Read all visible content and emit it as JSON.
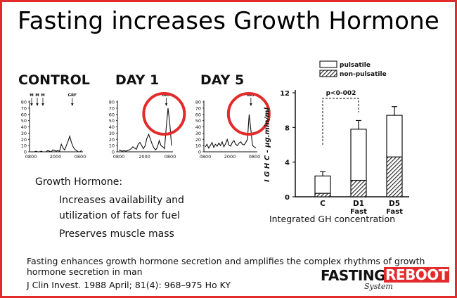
{
  "title": "Fasting increases Growth Hormone",
  "colors": {
    "border": "#e32b2b",
    "circle": "#e32b2b",
    "ink": "#111111"
  },
  "panels": [
    {
      "label": "CONTROL",
      "markers": [
        "M",
        "M",
        "M",
        "GRF"
      ],
      "yticks": [
        "80",
        "70",
        "60",
        "50",
        "40",
        "30",
        "20",
        "10",
        "0"
      ],
      "xticks": [
        "0800",
        "2000",
        "0800"
      ],
      "highlighted": false
    },
    {
      "label": "DAY 1",
      "markers": [
        "GRF"
      ],
      "yticks": [
        "80",
        "70",
        "60",
        "50",
        "40",
        "30",
        "20",
        "10",
        "0"
      ],
      "xticks": [
        "0800",
        "2000",
        "0800"
      ],
      "highlighted": true
    },
    {
      "label": "DAY 5",
      "markers": [
        "GRF"
      ],
      "yticks": [
        "80",
        "70",
        "60",
        "50",
        "40",
        "30",
        "20",
        "10",
        "0"
      ],
      "xticks": [
        "0800",
        "2000",
        "0800"
      ],
      "highlighted": true
    }
  ],
  "chart_data": [
    {
      "type": "line",
      "title": "CONTROL",
      "xlabel": "",
      "ylabel": "",
      "ylim": [
        0,
        80
      ],
      "xticks": [
        "0800",
        "2000",
        "0800"
      ],
      "series": [
        {
          "values": [
            0,
            0,
            0,
            1,
            0,
            0,
            1,
            0,
            0,
            0,
            2,
            1,
            0,
            3,
            2,
            1,
            2,
            1,
            12,
            6,
            3,
            10,
            17,
            25,
            15,
            8,
            4,
            2,
            0,
            0,
            2
          ]
        }
      ]
    },
    {
      "type": "line",
      "title": "DAY 1",
      "xlabel": "",
      "ylabel": "",
      "ylim": [
        0,
        80
      ],
      "xticks": [
        "0800",
        "2000",
        "0800"
      ],
      "series": [
        {
          "values": [
            3,
            2,
            1,
            2,
            1,
            2,
            3,
            5,
            8,
            6,
            4,
            12,
            15,
            10,
            5,
            10,
            22,
            28,
            20,
            12,
            6,
            3,
            8,
            18,
            10,
            8,
            5,
            40,
            70,
            45,
            10
          ]
        }
      ]
    },
    {
      "type": "line",
      "title": "DAY 5",
      "xlabel": "",
      "ylabel": "",
      "ylim": [
        0,
        80
      ],
      "xticks": [
        "0800",
        "2000",
        "0800"
      ],
      "series": [
        {
          "values": [
            8,
            12,
            6,
            10,
            15,
            7,
            12,
            9,
            14,
            10,
            16,
            8,
            13,
            20,
            11,
            9,
            15,
            18,
            12,
            10,
            14,
            16,
            12,
            11,
            15,
            20,
            60,
            35,
            10,
            8,
            6
          ]
        }
      ]
    },
    {
      "type": "bar",
      "title": "",
      "ylabel": "I G H C - μg.min/ml",
      "ylim": [
        0,
        12
      ],
      "yticks": [
        "0",
        "4",
        "8",
        "12"
      ],
      "categories": [
        "C",
        "D1 Fast",
        "D5 Fast"
      ],
      "series": [
        {
          "name": "pulsatile",
          "values": [
            2.0,
            5.9,
            4.8
          ]
        },
        {
          "name": "non-pulsatile",
          "values": [
            0.4,
            1.9,
            4.6
          ]
        }
      ],
      "totals": [
        2.4,
        7.8,
        9.4
      ],
      "errors": [
        0.5,
        1.0,
        1.0
      ],
      "annotation": "p<0-002",
      "legend": "top"
    }
  ],
  "text": {
    "gh_heading": "Growth Hormone:",
    "gh_bullet1a": "Increases availability and",
    "gh_bullet1b": "utilization of fats for fuel",
    "gh_bullet2": "Preserves muscle mass",
    "integrated": "Integrated GH concentration",
    "citation1": "Fasting enhances growth hormone secretion and amplifies the complex rhythms of growth",
    "citation2": "hormone secretion in man",
    "citation3": "J Clin Invest. 1988 April; 81(4): 968–975 Ho KY"
  },
  "logo": {
    "word1": "FASTING",
    "word2": "REBOOT",
    "word3": "System"
  }
}
